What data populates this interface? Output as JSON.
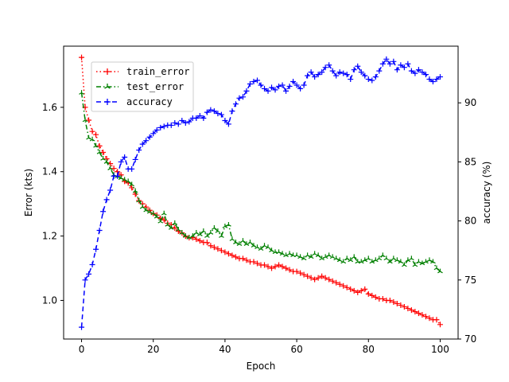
{
  "chart_data": {
    "type": "line",
    "title": "",
    "xlabel": "Epoch",
    "ylabel_left": "Error (kts)",
    "ylabel_right": "accuracy (%)",
    "xlim": [
      -5,
      105
    ],
    "ylim_left": [
      0.88,
      1.79
    ],
    "ylim_right": [
      70,
      94.8
    ],
    "x_ticks": [
      0,
      20,
      40,
      60,
      80,
      100
    ],
    "x_tick_labels": [
      "0",
      "20",
      "40",
      "60",
      "80",
      "100"
    ],
    "y_left_ticks": [
      1.0,
      1.2,
      1.4,
      1.6
    ],
    "y_left_tick_labels": [
      "1.0",
      "1.2",
      "1.4",
      "1.6"
    ],
    "y_right_ticks": [
      70,
      75,
      80,
      85,
      90
    ],
    "y_right_tick_labels": [
      "70",
      "75",
      "80",
      "85",
      "90"
    ],
    "legend_position": "upper-left",
    "grid": false,
    "series": [
      {
        "name": "train_error",
        "axis": "left",
        "color": "#ff0000",
        "linestyle": "dotted",
        "marker": "plus",
        "x_start": 0,
        "values": [
          1.755,
          1.6,
          1.56,
          1.525,
          1.515,
          1.48,
          1.46,
          1.44,
          1.425,
          1.41,
          1.4,
          1.39,
          1.37,
          1.365,
          1.35,
          1.33,
          1.31,
          1.3,
          1.29,
          1.28,
          1.27,
          1.265,
          1.255,
          1.25,
          1.24,
          1.235,
          1.225,
          1.215,
          1.21,
          1.2,
          1.195,
          1.195,
          1.19,
          1.185,
          1.18,
          1.18,
          1.17,
          1.165,
          1.16,
          1.155,
          1.15,
          1.145,
          1.14,
          1.135,
          1.13,
          1.13,
          1.125,
          1.12,
          1.12,
          1.115,
          1.11,
          1.11,
          1.105,
          1.1,
          1.105,
          1.11,
          1.105,
          1.1,
          1.095,
          1.09,
          1.09,
          1.085,
          1.08,
          1.075,
          1.07,
          1.065,
          1.07,
          1.075,
          1.07,
          1.065,
          1.06,
          1.055,
          1.05,
          1.045,
          1.04,
          1.035,
          1.03,
          1.025,
          1.03,
          1.035,
          1.02,
          1.015,
          1.01,
          1.005,
          1.005,
          1.0,
          1.0,
          0.995,
          0.99,
          0.985,
          0.98,
          0.975,
          0.97,
          0.965,
          0.96,
          0.955,
          0.95,
          0.945,
          0.94,
          0.94,
          0.925
        ]
      },
      {
        "name": "test_error",
        "axis": "left",
        "color": "#008000",
        "linestyle": "dashdot",
        "marker": "tri",
        "x_start": 0,
        "values": [
          1.645,
          1.56,
          1.505,
          1.5,
          1.48,
          1.46,
          1.44,
          1.43,
          1.41,
          1.39,
          1.385,
          1.38,
          1.375,
          1.37,
          1.36,
          1.34,
          1.31,
          1.29,
          1.28,
          1.275,
          1.27,
          1.26,
          1.245,
          1.27,
          1.235,
          1.225,
          1.24,
          1.22,
          1.21,
          1.2,
          1.195,
          1.2,
          1.21,
          1.205,
          1.215,
          1.2,
          1.21,
          1.225,
          1.215,
          1.2,
          1.23,
          1.235,
          1.19,
          1.18,
          1.175,
          1.185,
          1.175,
          1.18,
          1.17,
          1.165,
          1.16,
          1.17,
          1.165,
          1.155,
          1.15,
          1.15,
          1.145,
          1.14,
          1.145,
          1.14,
          1.14,
          1.135,
          1.13,
          1.14,
          1.135,
          1.145,
          1.14,
          1.13,
          1.135,
          1.14,
          1.135,
          1.13,
          1.125,
          1.12,
          1.13,
          1.125,
          1.135,
          1.12,
          1.12,
          1.125,
          1.13,
          1.12,
          1.125,
          1.13,
          1.14,
          1.13,
          1.12,
          1.13,
          1.125,
          1.12,
          1.11,
          1.125,
          1.13,
          1.11,
          1.12,
          1.115,
          1.12,
          1.125,
          1.12,
          1.1,
          1.09
        ]
      },
      {
        "name": "accuracy",
        "axis": "right",
        "color": "#0000ff",
        "linestyle": "dashed",
        "marker": "plus",
        "x_start": 0,
        "values": [
          71.0,
          75.0,
          75.5,
          76.3,
          77.6,
          79.2,
          80.8,
          81.8,
          82.6,
          83.8,
          83.8,
          85.0,
          85.4,
          84.4,
          84.4,
          85.2,
          86.0,
          86.5,
          86.8,
          87.1,
          87.4,
          87.7,
          87.9,
          88.0,
          88.1,
          88.1,
          88.3,
          88.2,
          88.5,
          88.3,
          88.4,
          88.7,
          88.7,
          88.9,
          88.7,
          89.2,
          89.4,
          89.3,
          89.1,
          89.0,
          88.5,
          88.2,
          89.3,
          89.9,
          90.4,
          90.5,
          91.0,
          91.6,
          91.8,
          91.9,
          91.5,
          91.2,
          91.0,
          91.3,
          91.1,
          91.4,
          91.5,
          91.0,
          91.4,
          91.8,
          91.5,
          91.2,
          91.5,
          92.3,
          92.6,
          92.2,
          92.4,
          92.6,
          93.0,
          93.2,
          92.7,
          92.3,
          92.6,
          92.5,
          92.4,
          92.0,
          92.8,
          93.1,
          92.6,
          92.3,
          92.0,
          91.9,
          92.2,
          92.7,
          93.3,
          93.7,
          93.3,
          93.5,
          92.8,
          93.2,
          93.0,
          93.3,
          92.7,
          92.5,
          92.8,
          92.6,
          92.4,
          92.0,
          91.8,
          92.0,
          92.2
        ]
      }
    ]
  }
}
